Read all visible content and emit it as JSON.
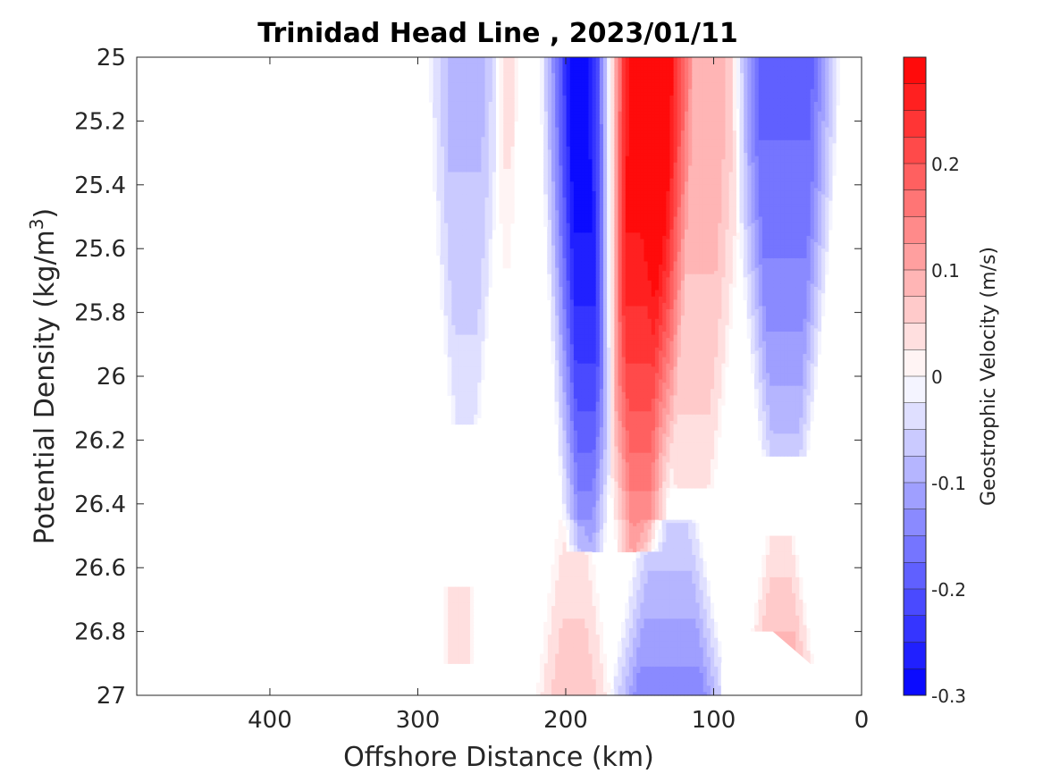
{
  "chart_data": {
    "type": "heatmap",
    "title": "Trinidad Head Line , 2023/01/11",
    "xlabel": "Offshore Distance (km)",
    "ylabel_main": "Potential Density (kg/m",
    "ylabel_sup": "3",
    "ylabel_close": ")",
    "colorbar_label": "Geostrophic Velocity (m/s)",
    "x_reversed": true,
    "xlim": [
      0,
      490
    ],
    "ylim": [
      25,
      27
    ],
    "y_reversed": true,
    "x_ticks": [
      400,
      300,
      200,
      100,
      0
    ],
    "x_tick_labels": [
      "400",
      "300",
      "200",
      "100",
      "0"
    ],
    "y_ticks": [
      25,
      25.2,
      25.4,
      25.6,
      25.8,
      26,
      26.2,
      26.4,
      26.6,
      26.8,
      27
    ],
    "y_tick_labels": [
      "25",
      "25.2",
      "25.4",
      "25.6",
      "25.8",
      "26",
      "26.2",
      "26.4",
      "26.6",
      "26.8",
      "27"
    ],
    "colorbar_range": [
      -0.3,
      0.3
    ],
    "colorbar_levels": 24,
    "colorbar_ticks": [
      -0.3,
      -0.2,
      -0.1,
      0,
      0.1,
      0.2
    ],
    "colorbar_tick_labels": [
      "-0.3",
      "-0.2",
      "-0.1",
      "0",
      "0.1",
      "0.2"
    ],
    "colormap": {
      "negative": "#0000ff",
      "zero": "#ffffff",
      "positive": "#ff0000"
    },
    "grid": false,
    "features": [
      {
        "center_km": 187,
        "core_width_km": 9,
        "taper_km": 22,
        "peak": -0.3,
        "top": 25.0,
        "bottom": 26.55,
        "edge_curve": 1.2
      },
      {
        "center_km": 150,
        "core_width_km": 12,
        "taper_km": 25,
        "peak": 0.3,
        "top": 25.0,
        "bottom": 26.55,
        "edge_curve": 1.2
      },
      {
        "center_km": 115,
        "core_width_km": 20,
        "taper_km": 20,
        "peak": 0.09,
        "top": 25.0,
        "bottom": 26.35,
        "edge_curve": 1.0
      },
      {
        "center_km": 52,
        "core_width_km": 18,
        "taper_km": 20,
        "peak": -0.18,
        "top": 25.0,
        "bottom": 26.25,
        "edge_curve": 1.0
      },
      {
        "center_km": 268,
        "core_width_km": 12,
        "taper_km": 14,
        "peak": -0.08,
        "top": 25.0,
        "bottom": 26.15,
        "edge_curve": 1.0
      },
      {
        "center_km": 240,
        "core_width_km": 4,
        "taper_km": 5,
        "peak": 0.03,
        "top": 25.0,
        "bottom": 25.7,
        "edge_curve": 1.0
      },
      {
        "center_km": 195,
        "core_width_km": 10,
        "taper_km": 18,
        "peak": 0.07,
        "top": 26.45,
        "bottom": 27.0,
        "edge_curve": -1.0
      },
      {
        "center_km": 130,
        "core_width_km": 22,
        "taper_km": 20,
        "peak": -0.14,
        "top": 26.45,
        "bottom": 27.0,
        "edge_curve": -1.0
      },
      {
        "center_km": 55,
        "core_width_km": 10,
        "taper_km": 14,
        "peak": 0.09,
        "top": 26.5,
        "bottom": 26.9,
        "edge_curve": -1.0
      },
      {
        "center_km": 272,
        "core_width_km": 6,
        "taper_km": 8,
        "peak": 0.03,
        "top": 26.66,
        "bottom": 26.9,
        "edge_curve": 0
      }
    ]
  }
}
